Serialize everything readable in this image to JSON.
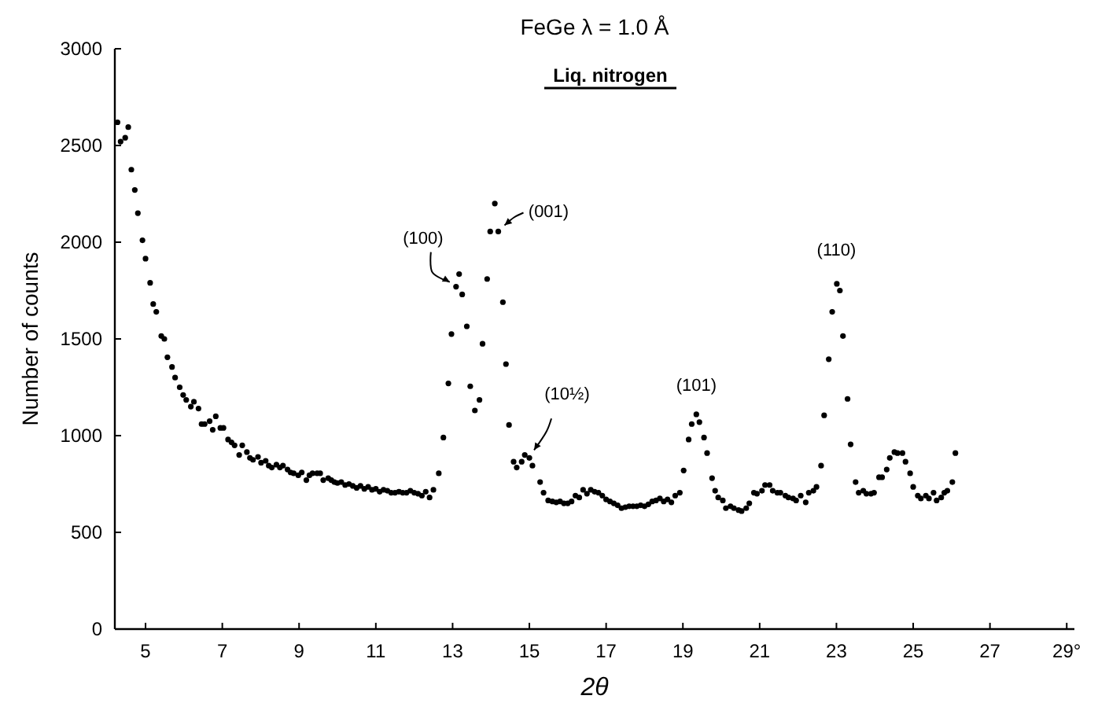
{
  "chart_data": {
    "type": "scatter",
    "title": "FeGe    λ = 1.0 Å",
    "xlabel": "2θ",
    "ylabel": "Number of counts",
    "xlim": [
      4.2,
      29.2
    ],
    "xticks": [
      5,
      7,
      9,
      11,
      13,
      15,
      17,
      19,
      21,
      23,
      25,
      27,
      {
        "value": 29,
        "label": "29°"
      }
    ],
    "ylim": [
      0,
      3000
    ],
    "yticks": [
      0,
      500,
      1000,
      1500,
      2000,
      2500,
      3000
    ],
    "grid": false,
    "marker": "circle",
    "annotations": [
      "Liq. nitrogen",
      {
        "text": "(100)",
        "x": 13.09,
        "y": 1770
      },
      {
        "text": "(001)",
        "x": 14.19,
        "y": 2055
      },
      {
        "text": "(10½)",
        "x": 15.0,
        "y": 885
      },
      {
        "text": "(101)",
        "x": 19.35,
        "y": 1110
      },
      {
        "text": "(110)",
        "x": 23.0,
        "y": 1785
      }
    ],
    "series": [
      {
        "color": "#000000",
        "x": [
          4.27,
          4.35,
          4.47,
          4.55,
          4.63,
          4.72,
          4.8,
          4.92,
          5.0,
          5.12,
          5.2,
          5.28,
          5.41,
          5.49,
          5.57,
          5.69,
          5.77,
          5.89,
          5.98,
          6.06,
          6.18,
          6.26,
          6.38,
          6.46,
          6.54,
          6.67,
          6.75,
          6.83,
          6.95,
          7.03,
          7.15,
          7.24,
          7.32,
          7.44,
          7.52,
          7.64,
          7.72,
          7.8,
          7.93,
          8.01,
          8.13,
          8.21,
          8.29,
          8.41,
          8.5,
          8.58,
          8.7,
          8.78,
          8.86,
          8.98,
          9.07,
          9.19,
          9.27,
          9.35,
          9.47,
          9.55,
          9.63,
          9.76,
          9.84,
          9.92,
          10.0,
          10.1,
          10.2,
          10.3,
          10.4,
          10.5,
          10.6,
          10.7,
          10.8,
          10.9,
          11.0,
          11.1,
          11.2,
          11.3,
          11.4,
          11.5,
          11.6,
          11.7,
          11.8,
          11.9,
          12.0,
          12.1,
          12.2,
          12.3,
          12.4,
          12.5,
          12.64,
          12.76,
          12.89,
          12.97,
          13.09,
          13.17,
          13.25,
          13.37,
          13.46,
          13.58,
          13.7,
          13.78,
          13.9,
          13.98,
          14.1,
          14.19,
          14.31,
          14.39,
          14.47,
          14.59,
          14.67,
          14.8,
          14.88,
          15.0,
          15.08,
          15.28,
          15.37,
          15.49,
          15.6,
          15.7,
          15.8,
          15.9,
          16.0,
          16.1,
          16.2,
          16.3,
          16.4,
          16.5,
          16.6,
          16.7,
          16.8,
          16.9,
          17.0,
          17.1,
          17.2,
          17.3,
          17.4,
          17.5,
          17.6,
          17.7,
          17.8,
          17.9,
          18.0,
          18.1,
          18.2,
          18.3,
          18.4,
          18.5,
          18.6,
          18.7,
          18.8,
          18.92,
          19.02,
          19.15,
          19.23,
          19.35,
          19.43,
          19.55,
          19.63,
          19.76,
          19.84,
          19.92,
          20.04,
          20.12,
          20.24,
          20.33,
          20.45,
          20.53,
          20.65,
          20.73,
          20.85,
          20.93,
          21.06,
          21.14,
          21.26,
          21.34,
          21.46,
          21.54,
          21.67,
          21.75,
          21.87,
          21.95,
          22.07,
          22.2,
          22.28,
          22.4,
          22.48,
          22.6,
          22.68,
          22.8,
          22.89,
          23.01,
          23.09,
          23.17,
          23.29,
          23.37,
          23.5,
          23.58,
          23.7,
          23.78,
          23.9,
          23.98,
          24.11,
          24.19,
          24.31,
          24.39,
          24.51,
          24.59,
          24.72,
          24.8,
          24.92,
          25.0,
          25.12,
          25.2,
          25.33,
          25.41,
          25.53,
          25.61,
          25.73,
          25.81,
          25.89,
          26.02,
          26.1
        ],
        "values": [
          2620,
          2520,
          2540,
          2595,
          2375,
          2270,
          2150,
          2010,
          1915,
          1790,
          1680,
          1640,
          1515,
          1500,
          1405,
          1355,
          1300,
          1250,
          1210,
          1185,
          1150,
          1175,
          1140,
          1060,
          1060,
          1075,
          1030,
          1100,
          1040,
          1040,
          980,
          965,
          950,
          900,
          950,
          915,
          885,
          875,
          890,
          860,
          870,
          845,
          835,
          850,
          835,
          845,
          825,
          810,
          805,
          795,
          810,
          770,
          795,
          805,
          805,
          805,
          770,
          780,
          770,
          760,
          755,
          760,
          745,
          750,
          740,
          730,
          740,
          725,
          735,
          720,
          725,
          710,
          720,
          715,
          705,
          705,
          710,
          705,
          705,
          715,
          705,
          700,
          690,
          710,
          680,
          720,
          805,
          990,
          1270,
          1525,
          1770,
          1835,
          1730,
          1565,
          1255,
          1130,
          1185,
          1475,
          1810,
          2055,
          2200,
          2055,
          1690,
          1370,
          1055,
          865,
          835,
          865,
          900,
          885,
          845,
          760,
          705,
          665,
          660,
          655,
          660,
          650,
          650,
          660,
          690,
          680,
          720,
          700,
          720,
          710,
          705,
          690,
          670,
          660,
          650,
          640,
          625,
          630,
          635,
          635,
          635,
          640,
          635,
          645,
          660,
          665,
          675,
          660,
          670,
          655,
          690,
          705,
          820,
          980,
          1060,
          1110,
          1070,
          990,
          910,
          780,
          715,
          680,
          665,
          625,
          635,
          625,
          615,
          610,
          625,
          650,
          705,
          700,
          715,
          745,
          745,
          715,
          705,
          705,
          690,
          680,
          675,
          665,
          690,
          655,
          705,
          715,
          735,
          845,
          1105,
          1395,
          1640,
          1785,
          1750,
          1515,
          1190,
          955,
          760,
          705,
          715,
          700,
          700,
          705,
          785,
          785,
          825,
          885,
          915,
          910,
          910,
          865,
          805,
          735,
          690,
          675,
          690,
          675,
          705,
          665,
          680,
          705,
          715,
          760,
          910
        ]
      }
    ]
  }
}
